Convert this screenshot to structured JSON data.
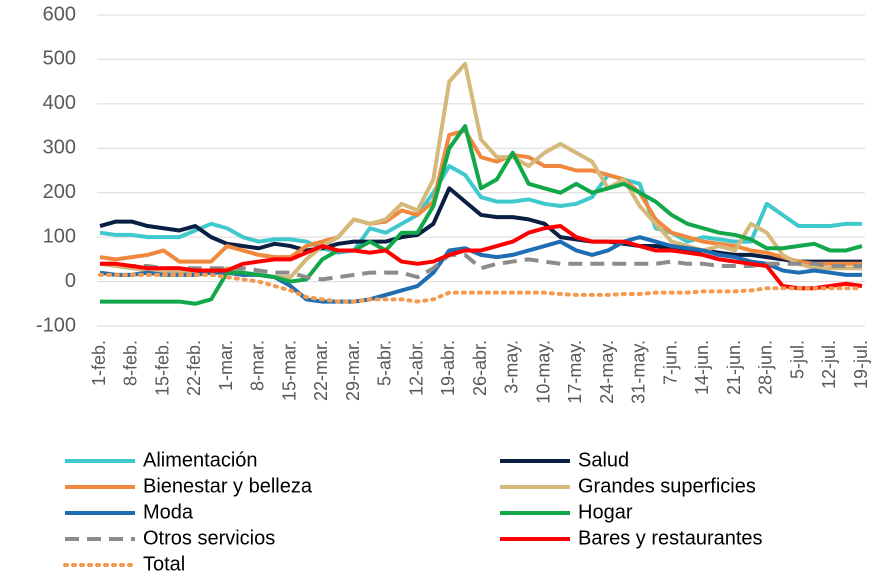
{
  "chart_data": {
    "type": "line",
    "categories": [
      "1-feb.",
      null,
      "8-feb.",
      null,
      "15-feb.",
      null,
      "22-feb.",
      null,
      "1-mar.",
      null,
      "8-mar.",
      null,
      "15-mar.",
      null,
      "22-mar.",
      null,
      "29-mar.",
      null,
      "5-abr.",
      null,
      "12-abr.",
      null,
      "19-abr.",
      null,
      "26-abr.",
      null,
      "3-may.",
      null,
      "10-may.",
      null,
      "17-may.",
      null,
      "24-may.",
      null,
      "31-may.",
      null,
      "7-jun.",
      null,
      "14-jun.",
      null,
      "21-jun.",
      null,
      "28-jun.",
      null,
      "5-jul.",
      null,
      "12-jul.",
      null,
      "19-jul."
    ],
    "ylim": [
      -100,
      600
    ],
    "yticks": [
      -100,
      0,
      100,
      200,
      300,
      400,
      500,
      600
    ],
    "grid": true,
    "series": [
      {
        "name": "Alimentación",
        "color": "#3fc9cf",
        "dash": "solid",
        "values": [
          110,
          105,
          105,
          100,
          100,
          100,
          115,
          130,
          120,
          100,
          90,
          95,
          95,
          90,
          75,
          65,
          70,
          120,
          110,
          130,
          150,
          200,
          260,
          240,
          190,
          180,
          180,
          185,
          175,
          170,
          175,
          190,
          240,
          230,
          220,
          120,
          110,
          90,
          100,
          95,
          90,
          90,
          175,
          150,
          125,
          125,
          125,
          130,
          130
        ]
      },
      {
        "name": "Salud",
        "color": "#0b1f45",
        "dash": "solid",
        "values": [
          125,
          135,
          135,
          125,
          120,
          115,
          125,
          100,
          85,
          80,
          75,
          85,
          80,
          70,
          75,
          85,
          90,
          90,
          90,
          100,
          105,
          130,
          210,
          180,
          150,
          145,
          145,
          140,
          130,
          100,
          95,
          90,
          90,
          85,
          80,
          80,
          75,
          70,
          70,
          65,
          60,
          60,
          55,
          50,
          45,
          45,
          45,
          45,
          45
        ]
      },
      {
        "name": "Bienestar y belleza",
        "color": "#f0883e",
        "dash": "solid",
        "values": [
          55,
          50,
          55,
          60,
          70,
          45,
          45,
          45,
          80,
          70,
          60,
          55,
          55,
          80,
          90,
          100,
          140,
          130,
          135,
          160,
          150,
          180,
          330,
          340,
          280,
          270,
          285,
          280,
          260,
          260,
          250,
          250,
          240,
          230,
          200,
          140,
          110,
          100,
          90,
          85,
          80,
          70,
          65,
          55,
          45,
          40,
          40,
          40,
          40
        ]
      },
      {
        "name": "Grandes superficies",
        "color": "#d4b97a",
        "dash": "solid",
        "values": [
          40,
          35,
          30,
          25,
          20,
          20,
          25,
          20,
          30,
          20,
          15,
          10,
          10,
          50,
          80,
          100,
          140,
          130,
          140,
          175,
          160,
          230,
          450,
          490,
          320,
          280,
          280,
          260,
          290,
          310,
          290,
          270,
          210,
          230,
          170,
          130,
          90,
          80,
          70,
          80,
          70,
          130,
          110,
          60,
          40,
          30,
          30,
          30,
          30
        ]
      },
      {
        "name": "Moda",
        "color": "#1f6db3",
        "dash": "solid",
        "values": [
          20,
          15,
          15,
          20,
          15,
          15,
          15,
          20,
          20,
          15,
          15,
          10,
          -10,
          -40,
          -45,
          -45,
          -45,
          -40,
          -30,
          -20,
          -10,
          20,
          70,
          75,
          60,
          55,
          60,
          70,
          80,
          90,
          70,
          60,
          70,
          90,
          100,
          90,
          80,
          75,
          70,
          60,
          55,
          45,
          40,
          25,
          20,
          25,
          20,
          15,
          15
        ]
      },
      {
        "name": "Hogar",
        "color": "#12a84a",
        "dash": "solid",
        "values": [
          -45,
          -45,
          -45,
          -45,
          -45,
          -45,
          -50,
          -40,
          20,
          20,
          15,
          10,
          0,
          5,
          50,
          70,
          70,
          90,
          70,
          110,
          110,
          170,
          300,
          350,
          210,
          230,
          290,
          220,
          210,
          200,
          220,
          200,
          210,
          220,
          200,
          180,
          150,
          130,
          120,
          110,
          105,
          95,
          75,
          75,
          80,
          85,
          70,
          70,
          80
        ]
      },
      {
        "name": "Otros servicios",
        "color": "#8c8c8c",
        "dash": "dashed",
        "values": [
          40,
          40,
          35,
          35,
          30,
          30,
          30,
          30,
          30,
          30,
          25,
          20,
          20,
          10,
          5,
          10,
          15,
          20,
          20,
          20,
          10,
          30,
          60,
          60,
          30,
          40,
          45,
          50,
          45,
          40,
          40,
          40,
          40,
          40,
          40,
          40,
          45,
          40,
          40,
          35,
          35,
          35,
          40,
          40,
          40,
          40,
          35,
          35,
          35
        ]
      },
      {
        "name": "Bares y restaurantes",
        "color": "#ff0000",
        "dash": "solid",
        "values": [
          40,
          40,
          35,
          30,
          30,
          30,
          25,
          25,
          25,
          40,
          45,
          50,
          50,
          65,
          80,
          70,
          70,
          65,
          70,
          45,
          40,
          45,
          60,
          70,
          70,
          80,
          90,
          110,
          120,
          125,
          100,
          90,
          90,
          90,
          80,
          70,
          70,
          65,
          60,
          50,
          45,
          40,
          35,
          -10,
          -15,
          -15,
          -10,
          -5,
          -10
        ]
      },
      {
        "name": "Total",
        "color": "#f39a4e",
        "dash": "dotted",
        "values": [
          15,
          15,
          15,
          15,
          15,
          15,
          15,
          15,
          10,
          5,
          0,
          -10,
          -20,
          -35,
          -40,
          -45,
          -45,
          -40,
          -40,
          -40,
          -45,
          -40,
          -25,
          -25,
          -25,
          -25,
          -25,
          -25,
          -25,
          -28,
          -30,
          -30,
          -30,
          -28,
          -28,
          -25,
          -25,
          -25,
          -22,
          -22,
          -22,
          -20,
          -15,
          -15,
          -15,
          -15,
          -15,
          -15,
          -15
        ]
      }
    ]
  }
}
